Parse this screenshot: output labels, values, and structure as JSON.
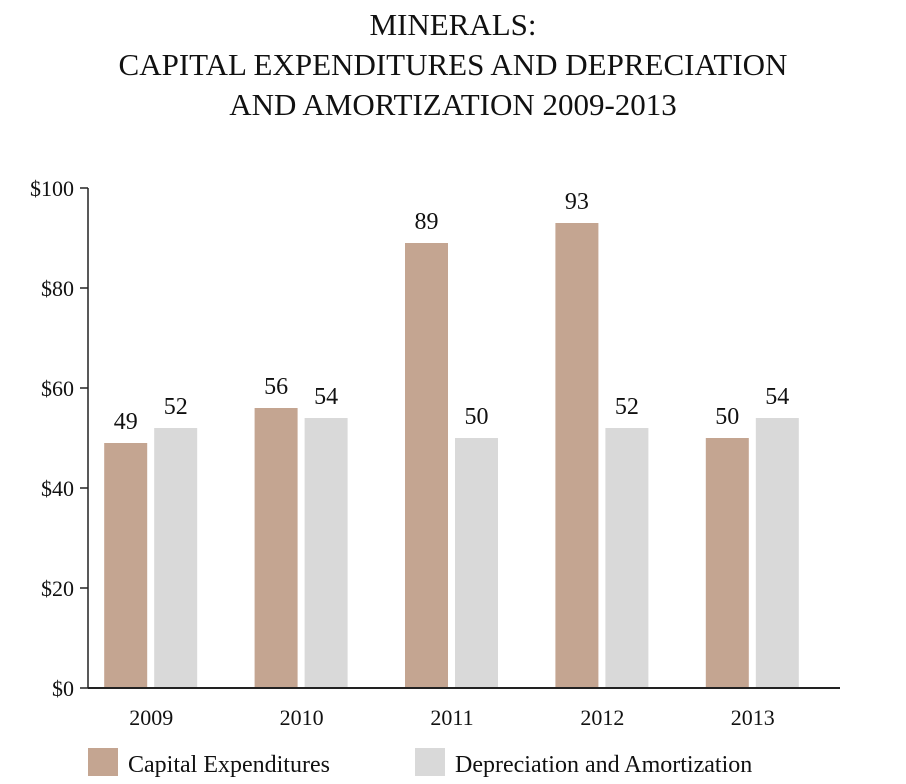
{
  "chart_data": {
    "type": "bar",
    "title": [
      "MINERALS:",
      "CAPITAL EXPENDITURES AND DEPRECIATION",
      "AND AMORTIZATION 2009-2013"
    ],
    "categories": [
      "2009",
      "2010",
      "2011",
      "2012",
      "2013"
    ],
    "series": [
      {
        "name": "Capital Expenditures",
        "color": "#c4a591",
        "values": [
          49,
          56,
          89,
          93,
          50
        ]
      },
      {
        "name": "Depreciation and Amortization",
        "color": "#d9d9d9",
        "values": [
          52,
          54,
          50,
          52,
          54
        ]
      }
    ],
    "ylim": [
      0,
      100
    ],
    "yticks": [
      {
        "value": 0,
        "label": "$0"
      },
      {
        "value": 20,
        "label": "$20"
      },
      {
        "value": 40,
        "label": "$40"
      },
      {
        "value": 60,
        "label": "$60"
      },
      {
        "value": 80,
        "label": "$80"
      },
      {
        "value": 100,
        "label": "$100"
      }
    ],
    "grid": false,
    "legend": "bottom"
  }
}
